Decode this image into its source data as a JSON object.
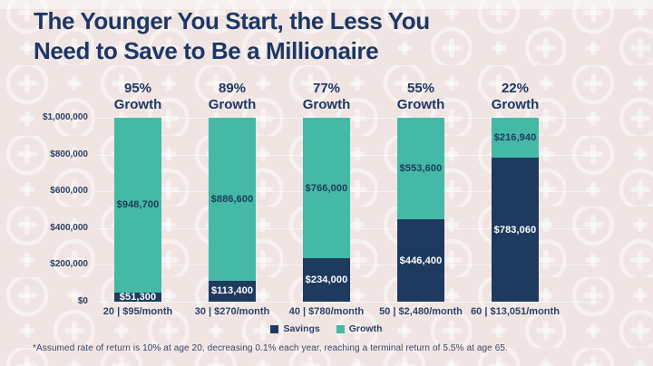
{
  "title_line1": "The Younger You Start, the Less You",
  "title_line2": "Need to Save to Be a Millionaire",
  "footnote": "*Assumed rate of return is 10% at age 20, decreasing 0.1% each year, reaching a terminal return of 5.5% at age 65.",
  "colors": {
    "background": "#f0e5e3",
    "title": "#1d3765",
    "savings": "#1e3a5e",
    "growth": "#44b9a5",
    "axis_text": "#2b4066"
  },
  "chart_data": {
    "type": "bar",
    "stacked": true,
    "title": "The Younger You Start, the Less You Need to Save to Be a Millionaire",
    "categories": [
      "20 | $95/month",
      "30 | $270/month",
      "40 | $780/month",
      "50 | $2,480/month",
      "60 | $13,051/month"
    ],
    "column_headers": [
      {
        "pct": "95%",
        "label": "Growth"
      },
      {
        "pct": "89%",
        "label": "Growth"
      },
      {
        "pct": "77%",
        "label": "Growth"
      },
      {
        "pct": "55%",
        "label": "Growth"
      },
      {
        "pct": "22%",
        "label": "Growth"
      }
    ],
    "series": [
      {
        "name": "Savings",
        "color_key": "savings",
        "values": [
          51300,
          113400,
          234000,
          446400,
          783060
        ],
        "labels": [
          "$51,300",
          "$113,400",
          "$234,000",
          "$446,400",
          "$783,060"
        ]
      },
      {
        "name": "Growth",
        "color_key": "growth",
        "values": [
          948700,
          886600,
          766000,
          553600,
          216940
        ],
        "labels": [
          "$948,700",
          "$886,600",
          "$766,000",
          "$553,600",
          "$216,940"
        ]
      }
    ],
    "y_ticks": [
      "$1,000,000",
      "$800,000",
      "$600,000",
      "$400,000",
      "$200,000",
      "$0"
    ],
    "ylim": [
      0,
      1000000
    ],
    "grid": true,
    "legend": [
      "Savings",
      "Growth"
    ],
    "legend_position": "bottom"
  }
}
